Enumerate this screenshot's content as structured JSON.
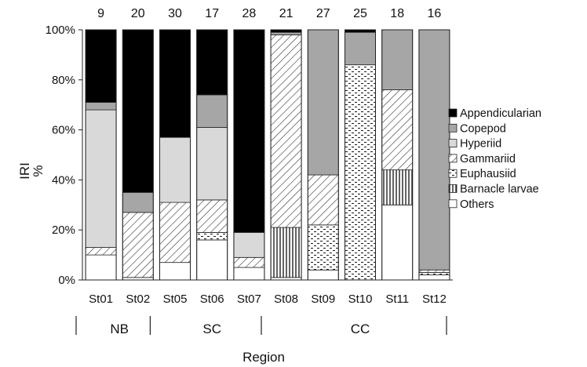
{
  "chart_data": {
    "type": "bar",
    "stacked": true,
    "ylabel_lines": [
      "IRI",
      "%"
    ],
    "xlabel": "Region",
    "ylim": [
      0,
      100
    ],
    "yticks": [
      0,
      20,
      40,
      60,
      80,
      100
    ],
    "ytick_labels": [
      "0%",
      "20%",
      "40%",
      "60%",
      "80%",
      "100%"
    ],
    "categories": [
      "St01",
      "St02",
      "St05",
      "St06",
      "St07",
      "St08",
      "St09",
      "St10",
      "St11",
      "St12"
    ],
    "sample_sizes": [
      "9",
      "20",
      "30",
      "17",
      "28",
      "21",
      "27",
      "25",
      "18",
      "16"
    ],
    "regions": [
      {
        "name": "NB",
        "stations": [
          "St01",
          "St02"
        ]
      },
      {
        "name": "SC",
        "stations": [
          "St05",
          "St06",
          "St07"
        ]
      },
      {
        "name": "CC",
        "stations": [
          "St08",
          "St09",
          "St10",
          "St11",
          "St12"
        ]
      }
    ],
    "series": [
      {
        "name": "Others",
        "pattern": "white",
        "values": [
          10,
          1,
          7,
          16,
          5,
          1,
          4,
          0,
          30,
          2
        ]
      },
      {
        "name": "Barnacle larvae",
        "pattern": "vstripe",
        "values": [
          0,
          0,
          0,
          0,
          0,
          20,
          0,
          0,
          14,
          0
        ]
      },
      {
        "name": "Euphausiid",
        "pattern": "dots",
        "values": [
          0,
          0,
          0,
          3,
          0,
          0,
          18,
          86,
          0,
          1
        ]
      },
      {
        "name": "Gammariid",
        "pattern": "diag",
        "values": [
          3,
          26,
          24,
          13,
          4,
          77,
          20,
          0,
          32,
          1
        ]
      },
      {
        "name": "Hyperiid",
        "pattern": "lightgray",
        "values": [
          55,
          0,
          26,
          29,
          10,
          0,
          0,
          0,
          0,
          0
        ]
      },
      {
        "name": "Copepod",
        "pattern": "gray",
        "values": [
          3,
          8,
          0,
          13,
          0,
          1,
          58,
          13,
          24,
          96
        ]
      },
      {
        "name": "Appendicularian",
        "pattern": "black",
        "values": [
          29,
          65,
          43,
          26,
          81,
          1,
          0,
          1,
          0,
          0
        ]
      }
    ],
    "legend_order": [
      "Appendicularian",
      "Copepod",
      "Hyperiid",
      "Gammariid",
      "Euphausiid",
      "Barnacle larvae",
      "Others"
    ],
    "legend_position": "right",
    "colors": {
      "black": "#000000",
      "gray": "#a6a6a6",
      "lightgray": "#d9d9d9",
      "white": "#ffffff",
      "outline": "#222222"
    }
  }
}
